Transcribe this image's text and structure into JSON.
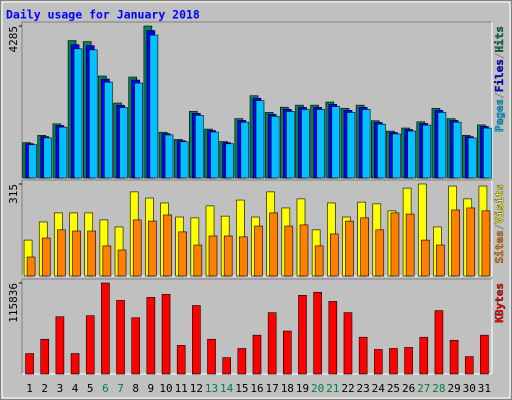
{
  "chart_data": {
    "type": "bar",
    "title": "Daily usage for January 2018",
    "categories": [
      "1",
      "2",
      "3",
      "4",
      "5",
      "6",
      "7",
      "8",
      "9",
      "10",
      "11",
      "12",
      "13",
      "14",
      "15",
      "16",
      "17",
      "18",
      "19",
      "20",
      "21",
      "22",
      "23",
      "24",
      "25",
      "26",
      "27",
      "28",
      "29",
      "30",
      "31"
    ],
    "category_colors": [
      "#000000",
      "#000000",
      "#000000",
      "#000000",
      "#000000",
      "#008040",
      "#008040",
      "#000000",
      "#000000",
      "#000000",
      "#000000",
      "#000000",
      "#008040",
      "#008040",
      "#000000",
      "#000000",
      "#000000",
      "#000000",
      "#000000",
      "#008040",
      "#008040",
      "#000000",
      "#000000",
      "#000000",
      "#000000",
      "#000000",
      "#008040",
      "#008040",
      "#000000",
      "#000000",
      "#000000"
    ],
    "separator": "/",
    "panels": [
      {
        "ylim": [
          0,
          4285
        ],
        "yticks": [
          4285
        ],
        "series": [
          {
            "name": "Hits",
            "color": "#00805c",
            "values": [
              998,
              1203,
              1526,
              3874,
              3845,
              2876,
              2113,
              2847,
              4285,
              1291,
              1086,
              1878,
              1379,
              1027,
              1673,
              2319,
              1849,
              1996,
              2054,
              2054,
              2142,
              1966,
              2054,
              1614,
              1321,
              1409,
              1585,
              1966,
              1673,
              1203,
              1497
            ]
          },
          {
            "name": "Files",
            "color": "#0000ff",
            "values": [
              968,
              1167,
              1480,
              3758,
              3730,
              2790,
              2050,
              2762,
              4156,
              1252,
              1053,
              1822,
              1338,
              996,
              1623,
              2249,
              1794,
              1936,
              1992,
              1992,
              2078,
              1907,
              1992,
              1566,
              1281,
              1367,
              1537,
              1907,
              1623,
              1167,
              1452
            ]
          },
          {
            "name": "Pages",
            "color": "#00c0ff",
            "values": [
              938,
              1131,
              1434,
              3642,
              3614,
              2703,
              1986,
              2676,
              4028,
              1214,
              1021,
              1765,
              1296,
              965,
              1573,
              2180,
              1738,
              1876,
              1931,
              1931,
              2013,
              1848,
              1931,
              1517,
              1242,
              1324,
              1490,
              1848,
              1573,
              1131,
              1407
            ]
          }
        ]
      },
      {
        "ylim": [
          0,
          315
        ],
        "yticks": [
          315
        ],
        "series": [
          {
            "name": "Visits",
            "color": "#ffff00",
            "values": [
              123,
              185,
              216,
              216,
              216,
              192,
              168,
              288,
              267,
              250,
              202,
              199,
              240,
              205,
              260,
              202,
              288,
              233,
              264,
              158,
              250,
              202,
              253,
              247,
              223,
              301,
              315,
              168,
              308,
              264,
              308
            ]
          },
          {
            "name": "Sites",
            "color": "#ff8000",
            "values": [
              65,
              130,
              158,
              154,
              154,
              103,
              89,
              192,
              188,
              209,
              151,
              106,
              137,
              137,
              134,
              171,
              216,
              171,
              175,
              103,
              144,
              188,
              199,
              158,
              216,
              212,
              123,
              106,
              226,
              233,
              223
            ]
          }
        ]
      },
      {
        "ylim": [
          0,
          115836
        ],
        "yticks": [
          115836
        ],
        "series": [
          {
            "name": "KBytes",
            "color": "#ff0000",
            "values": [
              26020,
              44234,
              72856,
              26020,
              74157,
              115836,
              93672,
              71555,
              97575,
              101478,
              36428,
              87167,
              44234,
              20816,
              32525,
              49438,
              78060,
              54642,
              100177,
              104080,
              92371,
              78060,
              46836,
              31224,
              32525,
              33826,
              46836,
              80662,
              42933,
              22117,
              49438
            ]
          }
        ]
      }
    ]
  }
}
